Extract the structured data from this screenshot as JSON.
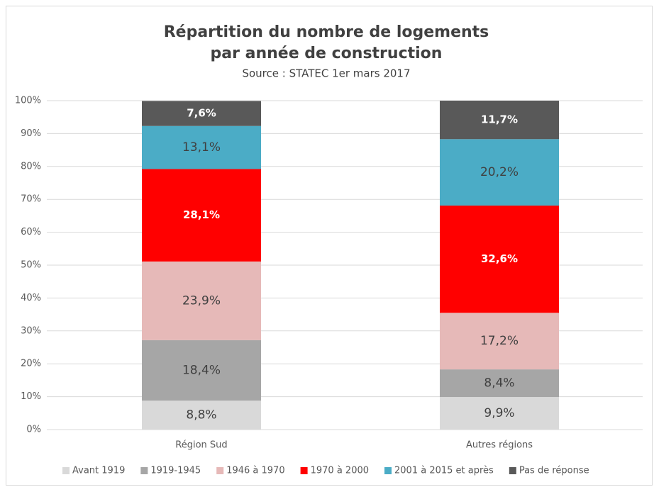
{
  "chart_data": {
    "type": "stacked_bar",
    "title": [
      "Répartition du nombre de logements",
      "par année de construction"
    ],
    "subtitle": "Source : STATEC 1er mars 2017",
    "categories": [
      "Région Sud",
      "Autres régions"
    ],
    "series": [
      {
        "name": "Avant 1919",
        "color": "#d9d9d9",
        "label_color": "#404040",
        "values": [
          8.8,
          9.9
        ],
        "value_labels": [
          "8,8%",
          "9,9%"
        ]
      },
      {
        "name": "1919-1945",
        "color": "#a6a6a6",
        "label_color": "#404040",
        "values": [
          18.4,
          8.4
        ],
        "value_labels": [
          "18,4%",
          "8,4%"
        ]
      },
      {
        "name": "1946 à 1970",
        "color": "#e6b9b8",
        "label_color": "#404040",
        "values": [
          23.9,
          17.2
        ],
        "value_labels": [
          "23,9%",
          "17,2%"
        ]
      },
      {
        "name": "1970 à 2000",
        "color": "#ff0000",
        "label_color": "#ffffff",
        "values": [
          28.1,
          32.6
        ],
        "value_labels": [
          "28,1%",
          "32,6%"
        ]
      },
      {
        "name": "2001 à 2015 et après",
        "color": "#4bacc6",
        "label_color": "#404040",
        "values": [
          13.1,
          20.2
        ],
        "value_labels": [
          "13,1%",
          "20,2%"
        ]
      },
      {
        "name": "Pas de réponse",
        "color": "#595959",
        "label_color": "#ffffff",
        "values": [
          7.6,
          11.7
        ],
        "value_labels": [
          "7,6%",
          "11,7%"
        ]
      }
    ],
    "ylim": [
      0,
      100
    ],
    "yticks": [
      {
        "value": 0,
        "label": "0%"
      },
      {
        "value": 10,
        "label": "10%"
      },
      {
        "value": 20,
        "label": "20%"
      },
      {
        "value": 30,
        "label": "30%"
      },
      {
        "value": 40,
        "label": "40%"
      },
      {
        "value": 50,
        "label": "50%"
      },
      {
        "value": 60,
        "label": "60%"
      },
      {
        "value": 70,
        "label": "70%"
      },
      {
        "value": 80,
        "label": "80%"
      },
      {
        "value": 90,
        "label": "90%"
      },
      {
        "value": 100,
        "label": "100%"
      }
    ],
    "grid": true,
    "legend": "bottom"
  }
}
